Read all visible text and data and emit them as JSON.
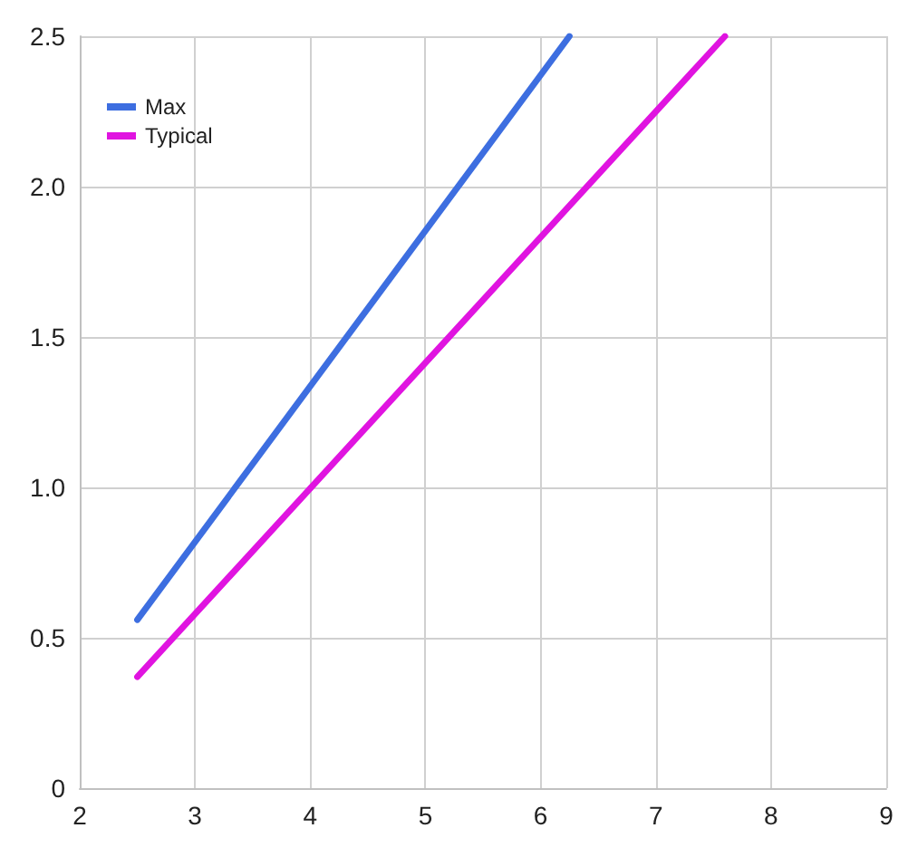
{
  "chart_data": {
    "type": "line",
    "x": [
      2.5,
      6.25
    ],
    "series": [
      {
        "name": "Max",
        "color": "#3d6ee0",
        "values": [
          0.56,
          2.5
        ]
      },
      {
        "name": "Typical",
        "color": "#e014e0",
        "x": [
          2.5,
          7.6
        ],
        "values": [
          0.37,
          2.5
        ]
      }
    ],
    "xlim": [
      2,
      9
    ],
    "xticks": [
      2,
      3,
      4,
      5,
      6,
      7,
      8,
      9
    ],
    "ylim": [
      0,
      2.5
    ],
    "yticks": [
      0,
      0.5,
      {
        "value": 1,
        "label": "1.0"
      },
      1.5,
      {
        "value": 2,
        "label": "2.0"
      },
      2.5
    ],
    "grid": true,
    "legend": "top left",
    "marker": "none",
    "line_style": "solid"
  }
}
